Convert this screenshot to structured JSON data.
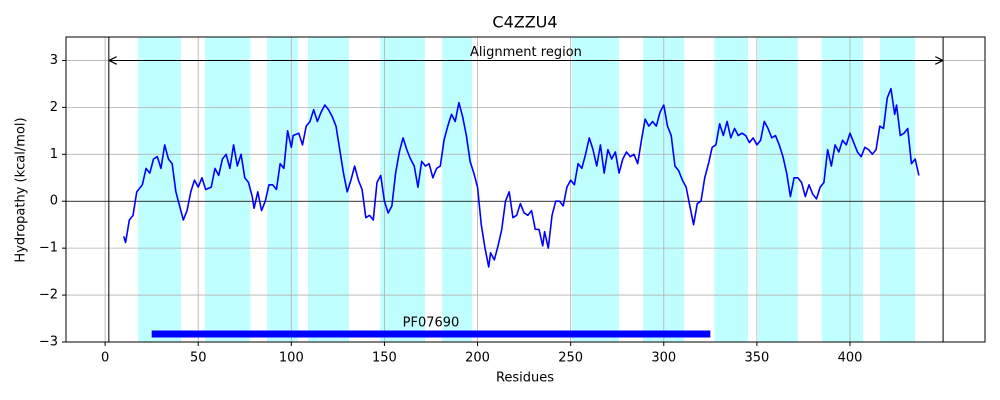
{
  "chart_data": {
    "type": "line",
    "title": "C4ZZU4",
    "x_label": "Residues",
    "y_label": "Hydropathy (kcal/mol)",
    "x": [
      10,
      11,
      13,
      15,
      17,
      20,
      22,
      24,
      26,
      28,
      30,
      32,
      34,
      36,
      38,
      40,
      42,
      44,
      46,
      48,
      50,
      52,
      54,
      57,
      59,
      61,
      63,
      65,
      67,
      69,
      71,
      73,
      75,
      77,
      79,
      80,
      82,
      84,
      86,
      88,
      90,
      92,
      94,
      96,
      98,
      100,
      101,
      104,
      106,
      108,
      110,
      112,
      114,
      116,
      118,
      120,
      122,
      124,
      126,
      128,
      130,
      132,
      134,
      136,
      138,
      140,
      142,
      144,
      146,
      148,
      150,
      152,
      154,
      156,
      158,
      160,
      162,
      164,
      166,
      168,
      170,
      172,
      174,
      176,
      178,
      180,
      182,
      184,
      186,
      188,
      190,
      192,
      194,
      196,
      198,
      200,
      202,
      204,
      206,
      207,
      209,
      211,
      213,
      215,
      217,
      219,
      221,
      223,
      225,
      227,
      229,
      231,
      233,
      235,
      236,
      238,
      240,
      242,
      244,
      246,
      248,
      250,
      252,
      254,
      256,
      258,
      260,
      262,
      264,
      266,
      268,
      270,
      272,
      274,
      276,
      278,
      280,
      282,
      284,
      286,
      288,
      290,
      292,
      294,
      296,
      298,
      300,
      302,
      304,
      306,
      308,
      310,
      312,
      314,
      316,
      318,
      320,
      322,
      324,
      326,
      328,
      330,
      332,
      334,
      336,
      338,
      340,
      342,
      344,
      346,
      348,
      350,
      352,
      354,
      356,
      358,
      360,
      362,
      364,
      366,
      368,
      370,
      372,
      374,
      376,
      378,
      380,
      382,
      384,
      386,
      388,
      390,
      392,
      394,
      396,
      398,
      400,
      402,
      404,
      406,
      408,
      410,
      412,
      414,
      416,
      418,
      420,
      422,
      424,
      425,
      427,
      429,
      431,
      433,
      435,
      437
    ],
    "values": [
      -0.75,
      -0.88,
      -0.4,
      -0.3,
      0.2,
      0.35,
      0.7,
      0.6,
      0.9,
      0.95,
      0.7,
      1.2,
      0.9,
      0.8,
      0.2,
      -0.1,
      -0.4,
      -0.2,
      0.2,
      0.45,
      0.3,
      0.5,
      0.25,
      0.3,
      0.7,
      0.55,
      0.9,
      1.0,
      0.7,
      1.2,
      0.75,
      1.0,
      0.5,
      0.4,
      0.1,
      -0.15,
      0.2,
      -0.2,
      0.0,
      0.35,
      0.35,
      0.25,
      0.8,
      0.7,
      1.5,
      1.15,
      1.4,
      1.45,
      1.2,
      1.6,
      1.7,
      1.95,
      1.7,
      1.9,
      2.05,
      1.95,
      1.8,
      1.6,
      1.1,
      0.6,
      0.2,
      0.45,
      0.75,
      0.45,
      0.25,
      -0.35,
      -0.3,
      -0.4,
      0.4,
      0.55,
      0.0,
      -0.25,
      -0.1,
      0.6,
      1.05,
      1.35,
      1.1,
      0.9,
      0.75,
      0.3,
      0.85,
      0.75,
      0.8,
      0.5,
      0.7,
      0.75,
      1.3,
      1.6,
      1.85,
      1.7,
      2.1,
      1.8,
      1.4,
      0.85,
      0.6,
      0.3,
      -0.5,
      -1.0,
      -1.4,
      -1.1,
      -1.25,
      -0.95,
      -0.6,
      0.0,
      0.2,
      -0.35,
      -0.3,
      -0.05,
      -0.25,
      -0.3,
      -0.2,
      -0.6,
      -0.6,
      -0.95,
      -0.65,
      -1.0,
      -0.3,
      0.0,
      0.0,
      -0.1,
      0.3,
      0.45,
      0.35,
      0.8,
      0.7,
      1.0,
      1.35,
      1.1,
      0.75,
      1.2,
      0.6,
      1.1,
      0.9,
      1.05,
      0.6,
      0.9,
      1.05,
      0.95,
      1.0,
      0.8,
      1.3,
      1.75,
      1.6,
      1.7,
      1.6,
      1.9,
      2.05,
      1.6,
      1.4,
      0.75,
      0.65,
      0.45,
      0.3,
      -0.1,
      -0.5,
      -0.05,
      0.0,
      0.5,
      0.8,
      1.15,
      1.2,
      1.65,
      1.4,
      1.7,
      1.35,
      1.55,
      1.4,
      1.45,
      1.4,
      1.25,
      1.35,
      1.2,
      1.3,
      1.7,
      1.55,
      1.35,
      1.4,
      1.2,
      0.95,
      0.6,
      0.1,
      0.5,
      0.5,
      0.4,
      0.1,
      0.35,
      0.15,
      0.05,
      0.3,
      0.4,
      1.1,
      0.75,
      1.2,
      1.05,
      1.3,
      1.2,
      1.45,
      1.25,
      1.05,
      0.95,
      1.15,
      1.1,
      1.0,
      1.1,
      1.6,
      1.55,
      2.2,
      2.4,
      1.85,
      2.05,
      1.4,
      1.45,
      1.55,
      0.8,
      0.9,
      0.55
    ],
    "color": "#0000ff",
    "regions": [
      {
        "start": 17.7,
        "end": 40.8
      },
      {
        "start": 53.7,
        "end": 77.9
      },
      {
        "start": 87,
        "end": 103.6
      },
      {
        "start": 109,
        "end": 131
      },
      {
        "start": 147.7,
        "end": 171.8
      },
      {
        "start": 181,
        "end": 197
      },
      {
        "start": 250.7,
        "end": 276
      },
      {
        "start": 288.9,
        "end": 311
      },
      {
        "start": 327.2,
        "end": 345.2
      },
      {
        "start": 350.6,
        "end": 372
      },
      {
        "start": 384.9,
        "end": 407
      },
      {
        "start": 416.1,
        "end": 434.9
      }
    ],
    "region_color": "#bfffff",
    "alignment_region": {
      "label": "Alignment region",
      "start": 2,
      "end": 450,
      "y": 3
    },
    "domain": {
      "label": "PF07690",
      "start": 25,
      "end": 325,
      "y": -2.83,
      "color": "#0000ff"
    },
    "xlim": [
      -21,
      472.5
    ],
    "ylim": [
      -3,
      3.5
    ],
    "xticks": [
      0,
      50,
      100,
      150,
      200,
      250,
      300,
      350,
      400
    ],
    "yticks": [
      {
        "value": -3,
        "label": "−3"
      },
      {
        "value": -2,
        "label": "−2"
      },
      {
        "value": -1,
        "label": "−1"
      },
      0,
      1,
      2,
      3
    ],
    "grid": true
  }
}
